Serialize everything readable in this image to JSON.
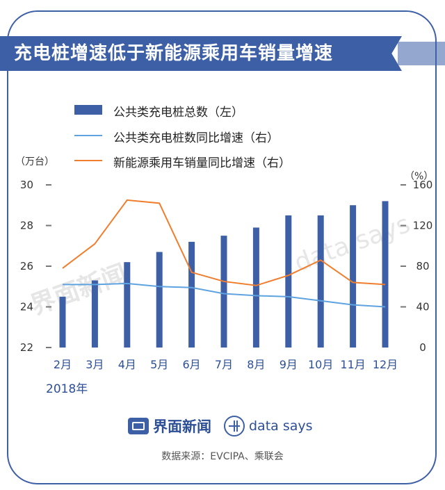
{
  "banner": {
    "title": "充电桩增速低于新能源乘用车销量增速"
  },
  "legend": [
    {
      "label": "公共类充电桩总数（左）",
      "kind": "bar",
      "color": "#3d5fa6"
    },
    {
      "label": "公共类充电桩数同比增速（右）",
      "kind": "line",
      "color": "#5ea3df"
    },
    {
      "label": "新能源乘用车销量同比增速（右）",
      "kind": "line",
      "color": "#f07d2c"
    }
  ],
  "axes": {
    "left_unit": "（万台）",
    "right_unit": "（%）",
    "left_ticks": [
      "22",
      "24",
      "26",
      "28",
      "30"
    ],
    "right_ticks": [
      "0",
      "40",
      "80",
      "120",
      "160"
    ],
    "year_label": "2018年"
  },
  "chart_data": {
    "type": "bar",
    "categories": [
      "2月",
      "3月",
      "4月",
      "5月",
      "6月",
      "7月",
      "8月",
      "9月",
      "10月",
      "11月",
      "12月"
    ],
    "series": [
      {
        "name": "公共类充电桩总数（左）",
        "type": "bar",
        "axis": "left",
        "values": [
          24.5,
          25.3,
          26.2,
          26.7,
          27.2,
          27.5,
          27.9,
          28.5,
          28.5,
          29.0,
          29.2
        ]
      },
      {
        "name": "公共类充电桩数同比增速（右）",
        "type": "line",
        "axis": "right",
        "values": [
          62,
          62,
          63,
          60,
          59,
          53,
          51,
          50,
          46,
          42,
          40
        ]
      },
      {
        "name": "新能源乘用车销量同比增速（右）",
        "type": "line",
        "axis": "right",
        "values": [
          78,
          102,
          145,
          142,
          74,
          65,
          61,
          71,
          86,
          64,
          62
        ]
      }
    ],
    "ylim_left": [
      22,
      30
    ],
    "ylim_right": [
      0,
      160
    ],
    "colors": {
      "bar": "#3d5fa6",
      "line1": "#5ea3df",
      "line2": "#f07d2c"
    }
  },
  "watermarks": {
    "brand": "界面新闻",
    "ds": "data says"
  },
  "footer": {
    "brand": "界面新闻",
    "ds": "data says",
    "source": "数据来源：EVCIPA、乘联会"
  }
}
